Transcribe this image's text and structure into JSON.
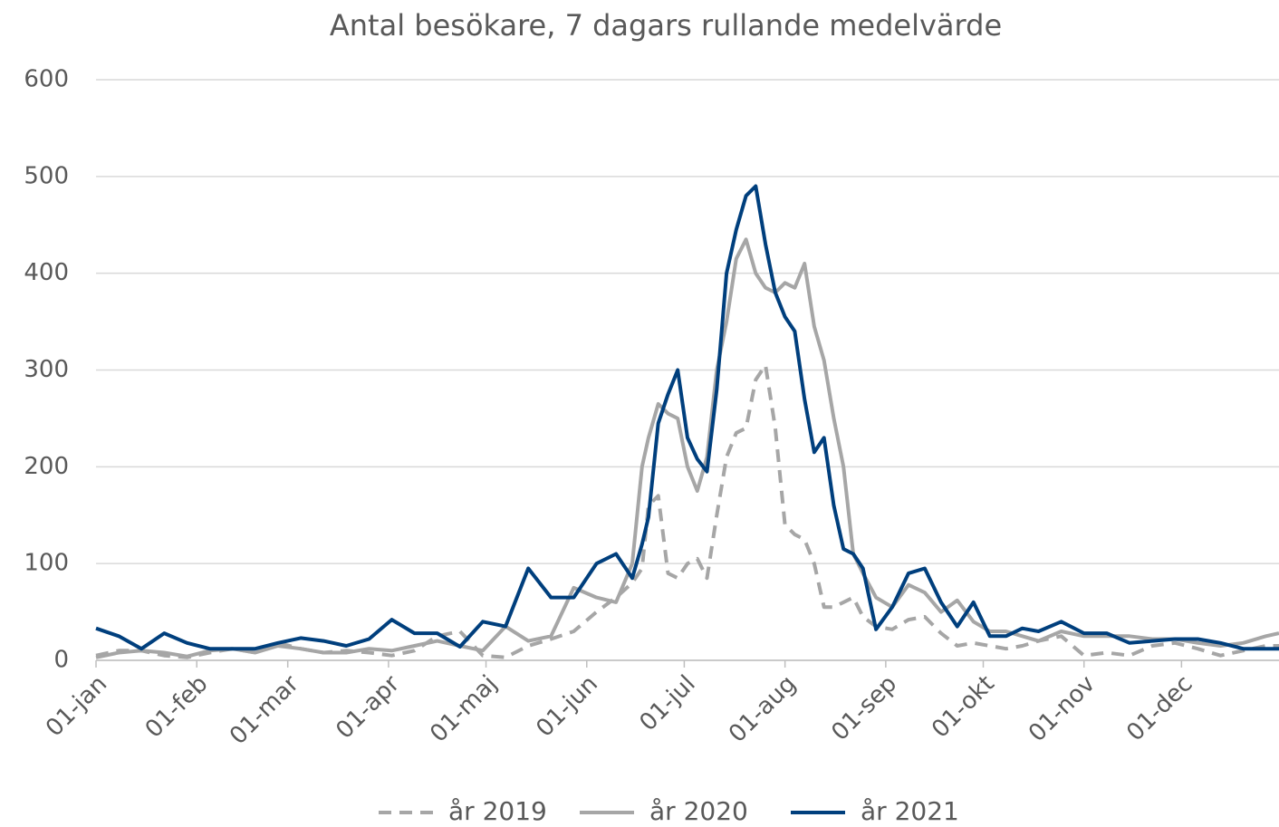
{
  "chart_data": {
    "type": "line",
    "title": "Antal besökare, 7 dagars rullande medelvärde",
    "x": [
      0,
      7,
      14,
      21,
      28,
      35,
      42,
      49,
      56,
      63,
      70,
      77,
      84,
      91,
      98,
      105,
      112,
      119,
      126,
      133,
      140,
      147,
      154,
      160,
      165,
      168,
      170,
      173,
      176,
      179,
      182,
      185,
      188,
      191,
      194,
      197,
      200,
      203,
      206,
      209,
      212,
      215,
      218,
      221,
      224,
      227,
      230,
      233,
      236,
      240,
      245,
      250,
      255,
      260,
      265,
      270,
      275,
      280,
      285,
      290,
      297,
      304,
      311,
      318,
      325,
      332,
      339,
      346,
      353,
      360,
      364
    ],
    "series": [
      {
        "name": "år 2019",
        "color": "#a6a6a6",
        "style": "dashed",
        "values": [
          5,
          10,
          10,
          5,
          3,
          8,
          12,
          8,
          18,
          12,
          8,
          10,
          8,
          5,
          10,
          25,
          30,
          5,
          3,
          15,
          22,
          30,
          50,
          65,
          80,
          95,
          160,
          170,
          90,
          85,
          100,
          105,
          85,
          150,
          210,
          235,
          240,
          290,
          305,
          240,
          140,
          130,
          125,
          100,
          55,
          55,
          60,
          65,
          45,
          35,
          32,
          42,
          45,
          28,
          15,
          18,
          15,
          12,
          15,
          20,
          25,
          5,
          8,
          5,
          15,
          18,
          12,
          5,
          10,
          15,
          15
        ]
      },
      {
        "name": "år 2020",
        "color": "#a6a6a6",
        "style": "solid",
        "values": [
          3,
          8,
          10,
          8,
          4,
          10,
          12,
          8,
          15,
          12,
          8,
          8,
          12,
          10,
          15,
          20,
          15,
          10,
          35,
          20,
          25,
          75,
          65,
          60,
          100,
          200,
          230,
          265,
          255,
          250,
          200,
          175,
          210,
          300,
          350,
          415,
          435,
          400,
          385,
          380,
          390,
          385,
          410,
          345,
          310,
          250,
          200,
          110,
          90,
          65,
          55,
          78,
          70,
          50,
          62,
          40,
          30,
          30,
          25,
          20,
          30,
          25,
          25,
          25,
          22,
          22,
          18,
          15,
          18,
          25,
          28
        ]
      },
      {
        "name": "år 2021",
        "color": "#003f7d",
        "style": "solid",
        "values": [
          33,
          25,
          12,
          28,
          18,
          12,
          12,
          12,
          18,
          23,
          20,
          15,
          22,
          42,
          28,
          28,
          14,
          40,
          35,
          95,
          65,
          65,
          100,
          110,
          85,
          120,
          148,
          245,
          275,
          300,
          230,
          208,
          195,
          280,
          400,
          445,
          480,
          490,
          430,
          380,
          355,
          340,
          270,
          215,
          230,
          160,
          115,
          110,
          95,
          32,
          55,
          90,
          95,
          60,
          35,
          60,
          25,
          25,
          33,
          30,
          40,
          28,
          28,
          18,
          20,
          22,
          22,
          18,
          12,
          12,
          12
        ]
      }
    ],
    "xlim": [
      0,
      364
    ],
    "xticks": [
      {
        "value": 0,
        "label": "01-jan"
      },
      {
        "value": 31,
        "label": "01-feb"
      },
      {
        "value": 59,
        "label": "01-mar"
      },
      {
        "value": 90,
        "label": "01-apr"
      },
      {
        "value": 120,
        "label": "01-maj"
      },
      {
        "value": 151,
        "label": "01-jun"
      },
      {
        "value": 181,
        "label": "01-jul"
      },
      {
        "value": 212,
        "label": "01-aug"
      },
      {
        "value": 243,
        "label": "01-sep"
      },
      {
        "value": 273,
        "label": "01-okt"
      },
      {
        "value": 304,
        "label": "01-nov"
      },
      {
        "value": 334,
        "label": "01-dec"
      }
    ],
    "ylim": [
      0,
      600
    ],
    "yticks": [
      0,
      100,
      200,
      300,
      400,
      500,
      600
    ],
    "grid": true,
    "legend": "bottom"
  }
}
